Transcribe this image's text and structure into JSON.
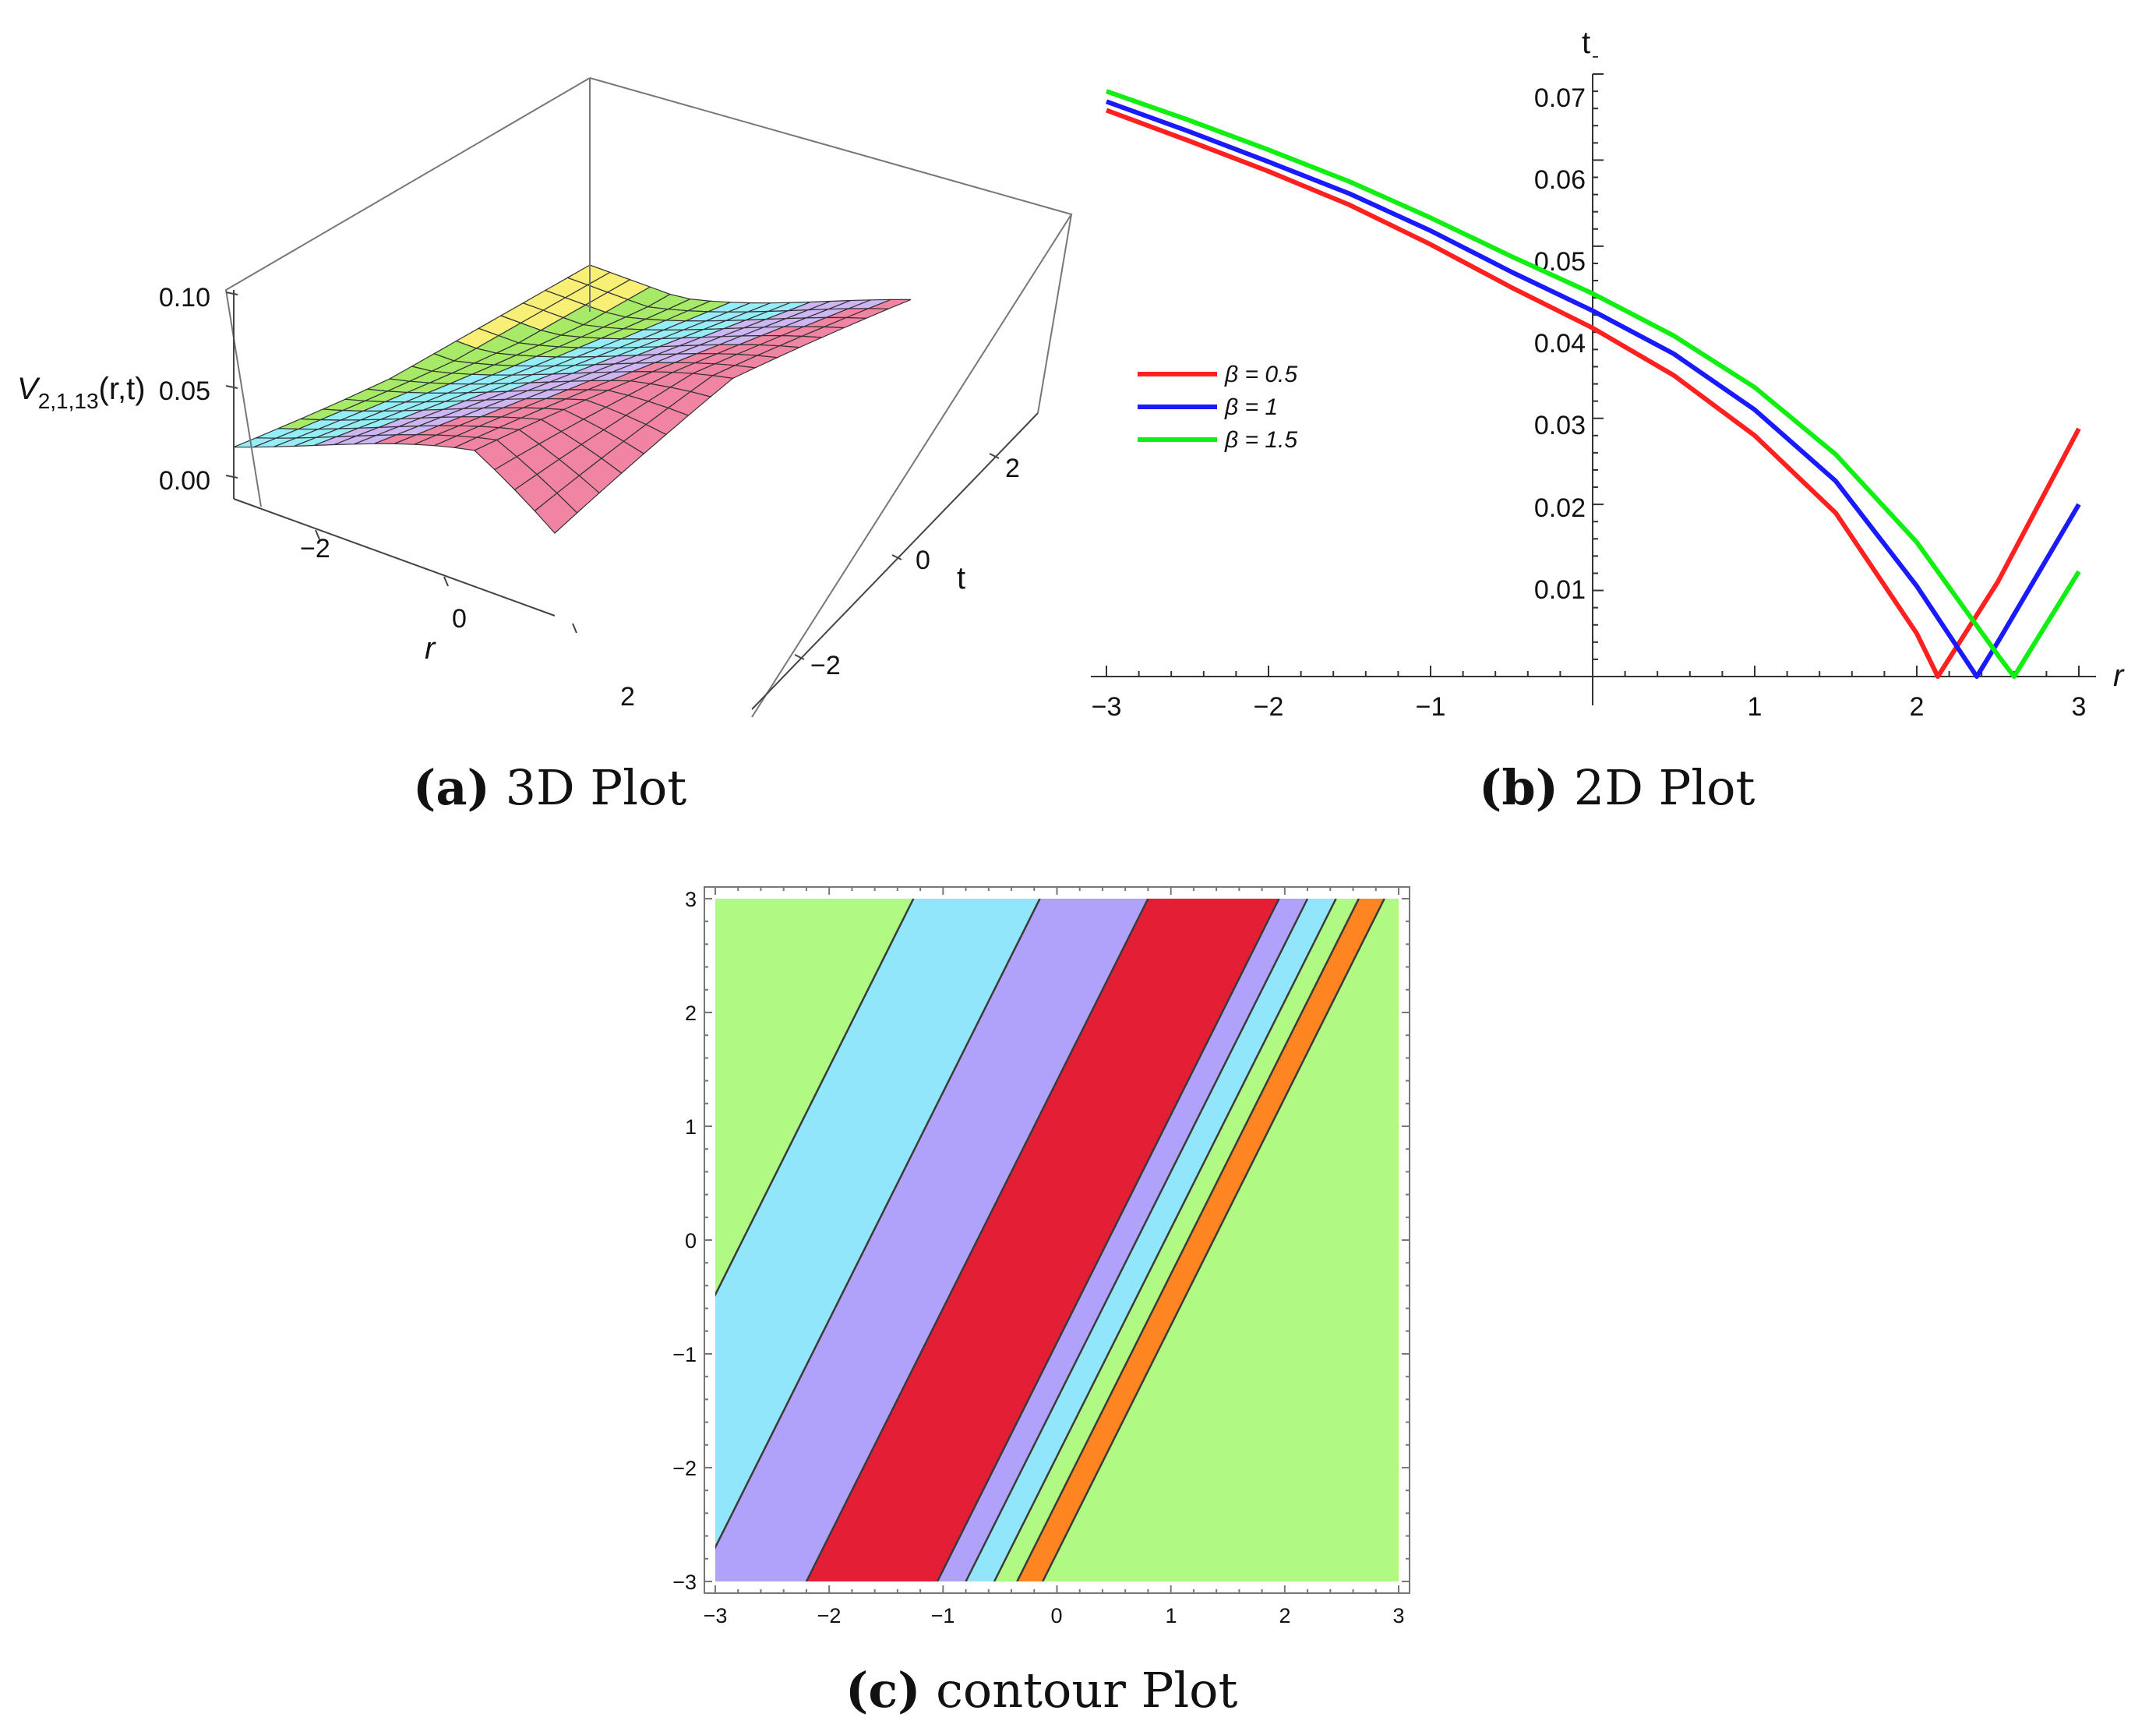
{
  "chart_data": [
    {
      "id": "a",
      "type": "surface3d",
      "caption_letter": "(a)",
      "caption_text": "3D Plot",
      "zlabel": "V",
      "zlabel_sub": "2,1,13",
      "zlabel_args": "(r,t)",
      "xlabel": "r",
      "ylabel": "t",
      "z_ticks": [
        "0.00",
        "0.05",
        "0.10"
      ],
      "r_ticks": [
        "−2",
        "0",
        "2"
      ],
      "t_ticks": [
        "−2",
        "0",
        "2"
      ],
      "r_range": [
        -3,
        3
      ],
      "t_range": [
        -3,
        3
      ],
      "z_range": [
        0,
        0.1
      ],
      "colors": [
        "#f7ef6a",
        "#9ee85a",
        "#8cecf6",
        "#c9b0f2",
        "#f1799b"
      ]
    },
    {
      "id": "b",
      "type": "line",
      "caption_letter": "(b)",
      "caption_text": "2D Plot",
      "xlabel": "r",
      "ylabel": "t",
      "xlim": [
        -3,
        3
      ],
      "ylim": [
        0,
        0.07
      ],
      "x_ticks": [
        "−3",
        "−2",
        "−1",
        "1",
        "2",
        "3"
      ],
      "y_ticks": [
        "0.01",
        "0.02",
        "0.03",
        "0.04",
        "0.05",
        "0.06",
        "0.07"
      ],
      "series": [
        {
          "name": "β = 0.5",
          "color": "#ff2020",
          "x": [
            -3,
            -2.5,
            -2,
            -1.5,
            -1,
            -0.5,
            0,
            0.5,
            1,
            1.5,
            2,
            2.13,
            2.5,
            3
          ],
          "y": [
            0.0658,
            0.0623,
            0.0587,
            0.0548,
            0.0502,
            0.0452,
            0.0405,
            0.035,
            0.028,
            0.019,
            0.005,
            0.0,
            0.011,
            0.0288
          ]
        },
        {
          "name": "β = 1",
          "color": "#1a1aff",
          "x": [
            -3,
            -2.5,
            -2,
            -1.5,
            -1,
            -0.5,
            0,
            0.5,
            1,
            1.5,
            2,
            2.37,
            2.5,
            3
          ],
          "y": [
            0.0668,
            0.0634,
            0.0598,
            0.0561,
            0.0518,
            0.047,
            0.0425,
            0.0375,
            0.031,
            0.0227,
            0.0105,
            0.0,
            0.004,
            0.02
          ]
        },
        {
          "name": "β = 1.5",
          "color": "#11ee11",
          "x": [
            -3,
            -2.5,
            -2,
            -1.5,
            -1,
            -0.5,
            0,
            0.5,
            1,
            1.5,
            2,
            2.5,
            2.6,
            3
          ],
          "y": [
            0.068,
            0.0647,
            0.0612,
            0.0575,
            0.0533,
            0.0488,
            0.0445,
            0.0396,
            0.0336,
            0.0258,
            0.0156,
            0.0025,
            0.0,
            0.0122
          ]
        }
      ]
    },
    {
      "id": "c",
      "type": "contour",
      "caption_letter": "(c)",
      "caption_text": "contour Plot",
      "xlim": [
        -3,
        3
      ],
      "ylim": [
        -3,
        3
      ],
      "x_ticks": [
        "−3",
        "−2",
        "−1",
        "0",
        "1",
        "2",
        "3"
      ],
      "y_ticks": [
        "3",
        "2",
        "1",
        "0",
        "−1",
        "−2",
        "−3"
      ],
      "bands": [
        {
          "color": "#b0fa84",
          "low": -99,
          "high": -5.52
        },
        {
          "color": "#91e6fb",
          "low": -5.52,
          "high": -3.3
        },
        {
          "color": "#b0a2fa",
          "low": -3.3,
          "high": -1.4
        },
        {
          "color": "#e41e35",
          "low": -1.4,
          "high": 0.9
        },
        {
          "color": "#b0a2fa",
          "low": 0.9,
          "high": 1.4
        },
        {
          "color": "#91e6fb",
          "low": 1.4,
          "high": 1.9
        },
        {
          "color": "#b0fa84",
          "low": 1.9,
          "high": 2.3
        },
        {
          "color": "#ff8422",
          "low": 2.3,
          "high": 2.75
        },
        {
          "color": "#b0fa84",
          "low": 2.75,
          "high": 99
        }
      ]
    }
  ]
}
